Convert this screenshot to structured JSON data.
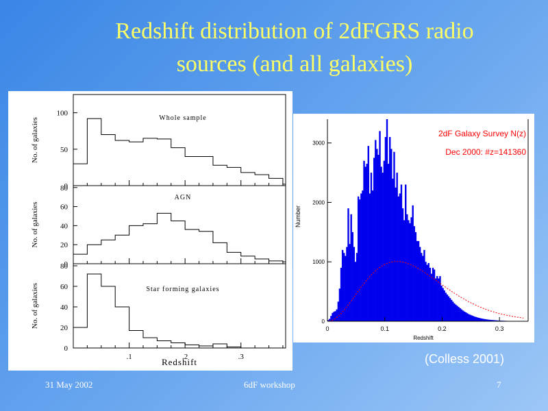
{
  "slide": {
    "title_line1": "Redshift distribution of 2dFGRS radio",
    "title_line2": "sources (and all galaxies)",
    "footer_date": "31 May 2002",
    "footer_event": "6dF workshop",
    "footer_page": "7",
    "credit": "(Colless 2001)"
  },
  "chart_data": [
    {
      "type": "bar",
      "style": "histogram-step",
      "title": "Whole sample",
      "ylabel": "No. of galaxies",
      "xlim": [
        0,
        0.38
      ],
      "ylim": [
        0,
        125
      ],
      "yticks": [
        "0",
        "50",
        "100"
      ],
      "bin_width": 0.025,
      "x": [
        0.0,
        0.025,
        0.05,
        0.075,
        0.1,
        0.125,
        0.15,
        0.175,
        0.2,
        0.225,
        0.25,
        0.275,
        0.3,
        0.325,
        0.35,
        0.375
      ],
      "values": [
        30,
        92,
        70,
        62,
        60,
        65,
        64,
        52,
        40,
        40,
        28,
        25,
        18,
        15,
        10,
        2
      ]
    },
    {
      "type": "bar",
      "style": "histogram-step",
      "title": "AGN",
      "ylabel": "No. of galaxies",
      "xlim": [
        0,
        0.38
      ],
      "ylim": [
        0,
        82
      ],
      "yticks": [
        "0",
        "20",
        "40",
        "60",
        "80"
      ],
      "bin_width": 0.025,
      "x": [
        0.0,
        0.025,
        0.05,
        0.075,
        0.1,
        0.125,
        0.15,
        0.175,
        0.2,
        0.225,
        0.25,
        0.275,
        0.3,
        0.325,
        0.35,
        0.375
      ],
      "values": [
        10,
        20,
        25,
        30,
        40,
        42,
        53,
        45,
        36,
        34,
        22,
        12,
        8,
        5,
        3,
        2
      ]
    },
    {
      "type": "bar",
      "style": "histogram-step",
      "title": "Star forming galaxies",
      "ylabel": "No. of galaxies",
      "xlabel": "Redshift",
      "xlim": [
        0,
        0.38
      ],
      "ylim": [
        0,
        82
      ],
      "yticks": [
        "0",
        "20",
        "40",
        "60",
        "80"
      ],
      "xticks": [
        {
          "value": 0.1,
          "label": ".1"
        },
        {
          "value": 0.2,
          "label": ".2"
        },
        {
          "value": 0.3,
          "label": ".3"
        }
      ],
      "bin_width": 0.025,
      "x": [
        0.0,
        0.025,
        0.05,
        0.075,
        0.1,
        0.125,
        0.15,
        0.175,
        0.2,
        0.225,
        0.25,
        0.275,
        0.3,
        0.325,
        0.35,
        0.375
      ],
      "values": [
        20,
        72,
        60,
        40,
        17,
        10,
        7,
        5,
        3,
        2,
        4,
        1,
        0,
        0,
        0,
        0
      ]
    },
    {
      "type": "bar",
      "style": "histogram-filled",
      "legend_line1": "2dF Galaxy Survey N(z)",
      "legend_line2": "Dec 2000: #z=141360",
      "xlabel": "Redshift",
      "ylabel": "Number",
      "xlim": [
        0,
        0.35
      ],
      "ylim": [
        0,
        3400
      ],
      "xticks": [
        {
          "value": 0.0,
          "label": "0"
        },
        {
          "value": 0.1,
          "label": "0.1"
        },
        {
          "value": 0.2,
          "label": "0.2"
        },
        {
          "value": 0.3,
          "label": "0.3"
        }
      ],
      "yticks": [
        {
          "value": 0,
          "label": "0"
        },
        {
          "value": 1000,
          "label": "1000"
        },
        {
          "value": 2000,
          "label": "2000"
        },
        {
          "value": 3000,
          "label": "3000"
        }
      ],
      "bar_color": "#0000ee",
      "fit_color": "#ff0000",
      "bin_width": 0.0025,
      "x": [
        0.0,
        0.0025,
        0.005,
        0.0075,
        0.01,
        0.0125,
        0.015,
        0.0175,
        0.02,
        0.0225,
        0.025,
        0.0275,
        0.03,
        0.0325,
        0.035,
        0.0375,
        0.04,
        0.0425,
        0.045,
        0.0475,
        0.05,
        0.0525,
        0.055,
        0.0575,
        0.06,
        0.0625,
        0.065,
        0.0675,
        0.07,
        0.0725,
        0.075,
        0.0775,
        0.08,
        0.0825,
        0.085,
        0.0875,
        0.09,
        0.0925,
        0.095,
        0.0975,
        0.1,
        0.1025,
        0.105,
        0.1075,
        0.11,
        0.1125,
        0.115,
        0.1175,
        0.12,
        0.1225,
        0.125,
        0.1275,
        0.13,
        0.1325,
        0.135,
        0.1375,
        0.14,
        0.1425,
        0.145,
        0.1475,
        0.15,
        0.1525,
        0.155,
        0.1575,
        0.16,
        0.1625,
        0.165,
        0.1675,
        0.17,
        0.1725,
        0.175,
        0.1775,
        0.18,
        0.1825,
        0.185,
        0.1875,
        0.19,
        0.1925,
        0.195,
        0.1975,
        0.2,
        0.2025,
        0.205,
        0.2075,
        0.21,
        0.2125,
        0.215,
        0.2175,
        0.22,
        0.2225,
        0.225,
        0.2275,
        0.23,
        0.2325,
        0.235,
        0.2375,
        0.24,
        0.2425,
        0.245,
        0.2475,
        0.25,
        0.2525,
        0.255,
        0.2575,
        0.26,
        0.2625,
        0.265,
        0.2675,
        0.27,
        0.2725,
        0.275,
        0.2775,
        0.28,
        0.2825,
        0.285,
        0.2875,
        0.29,
        0.2925,
        0.295,
        0.2975,
        0.3,
        0.3025,
        0.305,
        0.3075,
        0.31,
        0.3125,
        0.315,
        0.3175,
        0.32,
        0.3225,
        0.325,
        0.3275,
        0.33,
        0.3325,
        0.335,
        0.3375,
        0.34,
        0.3425,
        0.345,
        0.3475
      ],
      "values": [
        20,
        40,
        90,
        140,
        160,
        170,
        200,
        330,
        550,
        900,
        1200,
        1150,
        1100,
        1250,
        1900,
        1300,
        1800,
        1500,
        1250,
        1000,
        1150,
        2100,
        2050,
        2150,
        2200,
        2700,
        2600,
        2650,
        2950,
        2150,
        2500,
        2200,
        2750,
        3050,
        2900,
        2800,
        3200,
        2600,
        2500,
        2700,
        3100,
        3400,
        2650,
        3100,
        2900,
        2400,
        2850,
        2250,
        2500,
        2100,
        2150,
        2300,
        1900,
        1700,
        2300,
        1800,
        1700,
        1650,
        1750,
        1950,
        1600,
        1500,
        1350,
        1350,
        1250,
        1150,
        1100,
        1200,
        1000,
        950,
        980,
        900,
        800,
        900,
        870,
        720,
        760,
        720,
        760,
        600,
        560,
        520,
        480,
        450,
        420,
        390,
        360,
        330,
        300,
        280,
        260,
        240,
        220,
        200,
        180,
        165,
        150,
        135,
        120,
        110,
        100,
        90,
        80,
        72,
        65,
        58,
        52,
        47,
        42,
        38,
        34,
        30,
        27,
        24,
        22,
        20,
        18,
        16,
        14,
        12,
        11,
        10,
        9,
        8,
        7,
        6,
        5,
        5,
        4,
        4,
        3,
        3,
        3,
        2,
        2,
        2,
        2,
        1,
        1,
        1
      ]
    }
  ]
}
